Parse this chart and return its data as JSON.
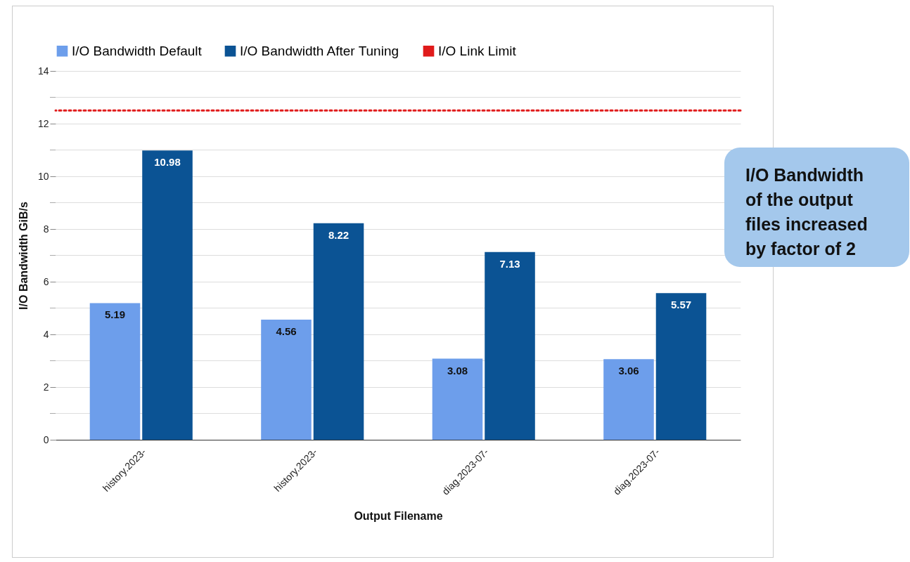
{
  "chart_data": {
    "type": "bar",
    "categories": [
      "history.2023-",
      "history.2023-",
      "diag.2023-07-",
      "diag.2023-07-"
    ],
    "series": [
      {
        "name": "I/O Bandwidth Default",
        "color": "#6d9eeb",
        "values": [
          5.19,
          4.56,
          3.08,
          3.06
        ]
      },
      {
        "name": "I/O Bandwidth After Tuning",
        "color": "#0b5394",
        "values": [
          10.98,
          8.22,
          7.13,
          5.57
        ]
      }
    ],
    "xlabel": "Output Filename",
    "ylabel": "I/O Bandwidth GiB/s",
    "ylim": [
      0,
      14
    ],
    "yticks": [
      0,
      {
        "value": 1,
        "label": null
      },
      2,
      {
        "value": 3,
        "label": null
      },
      4,
      {
        "value": 5,
        "label": null
      },
      6,
      {
        "value": 7,
        "label": null
      },
      8,
      {
        "value": 9,
        "label": null
      },
      10,
      {
        "value": 11,
        "label": null
      },
      12,
      {
        "value": 13,
        "label": null
      },
      14
    ],
    "ref_lines": [
      {
        "axis": "y",
        "value": 12.5,
        "label": "I/O Link Limit",
        "color": "#e01b1b",
        "line_style": "dotted"
      }
    ],
    "data_labels": true,
    "grid": "y",
    "legend": "top",
    "annotations": [
      "I/O Bandwidth of the output files increased by factor of 2"
    ]
  }
}
